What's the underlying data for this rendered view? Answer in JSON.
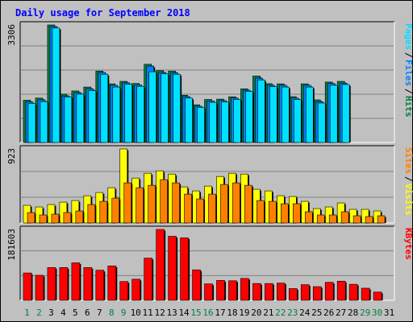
{
  "title": "Daily usage for September 2018",
  "chart_data": [
    {
      "type": "bar",
      "panel": "hits-files-pages",
      "categories": [
        "1",
        "2",
        "3",
        "4",
        "5",
        "6",
        "7",
        "8",
        "9",
        "10",
        "11",
        "12",
        "13",
        "14",
        "15",
        "16",
        "17",
        "18",
        "19",
        "20",
        "21",
        "22",
        "23",
        "24",
        "25",
        "26",
        "27",
        "28",
        "29",
        "30",
        "31"
      ],
      "series": [
        {
          "name": "Hits",
          "color": "#008040",
          "values": [
            1190,
            1250,
            3306,
            1360,
            1450,
            1560,
            2010,
            1650,
            1720,
            1660,
            2200,
            2020,
            2010,
            1330,
            1060,
            1210,
            1220,
            1285,
            1510,
            1870,
            1655,
            1650,
            1290,
            1650,
            1200,
            1700,
            1720,
            null,
            null,
            null,
            null
          ]
        },
        {
          "name": "Files",
          "color": "#0080ff",
          "values": [
            1140,
            1200,
            3260,
            1310,
            1400,
            1510,
            1970,
            1610,
            1680,
            1620,
            2150,
            1970,
            1960,
            1290,
            1020,
            1170,
            1180,
            1250,
            1470,
            1810,
            1610,
            1610,
            1250,
            1610,
            1150,
            1660,
            1670,
            null,
            null,
            null,
            null
          ]
        },
        {
          "name": "Pages",
          "color": "#00e0ff",
          "values": [
            1100,
            1150,
            3220,
            1280,
            1360,
            1460,
            1920,
            1560,
            1640,
            1580,
            1990,
            1930,
            1920,
            1250,
            990,
            1130,
            1140,
            1210,
            1440,
            1760,
            1570,
            1560,
            1210,
            1560,
            1110,
            1610,
            1630,
            null,
            null,
            null,
            null
          ]
        }
      ],
      "y_max_label": "3306",
      "grid": true
    },
    {
      "type": "bar",
      "panel": "visits-sites",
      "categories": [
        "1",
        "2",
        "3",
        "4",
        "5",
        "6",
        "7",
        "8",
        "9",
        "10",
        "11",
        "12",
        "13",
        "14",
        "15",
        "16",
        "17",
        "18",
        "19",
        "20",
        "21",
        "22",
        "23",
        "24",
        "25",
        "26",
        "27",
        "28",
        "29",
        "30",
        "31"
      ],
      "series": [
        {
          "name": "Visits",
          "color": "#ffff00",
          "values": [
            220,
            200,
            230,
            260,
            280,
            340,
            380,
            440,
            923,
            560,
            620,
            650,
            610,
            450,
            400,
            460,
            580,
            620,
            610,
            420,
            400,
            340,
            330,
            270,
            180,
            200,
            250,
            170,
            170,
            150,
            null
          ]
        },
        {
          "name": "Sites",
          "color": "#ff8000",
          "values": [
            130,
            100,
            110,
            130,
            150,
            230,
            270,
            310,
            500,
            440,
            470,
            540,
            500,
            360,
            300,
            360,
            480,
            500,
            470,
            280,
            270,
            240,
            240,
            140,
            100,
            100,
            140,
            90,
            80,
            90,
            null
          ]
        }
      ],
      "y_max_label": "923",
      "grid": true
    },
    {
      "type": "bar",
      "panel": "kbytes",
      "categories": [
        "1",
        "2",
        "3",
        "4",
        "5",
        "6",
        "7",
        "8",
        "9",
        "10",
        "11",
        "12",
        "13",
        "14",
        "15",
        "16",
        "17",
        "18",
        "19",
        "20",
        "21",
        "22",
        "23",
        "24",
        "25",
        "26",
        "27",
        "28",
        "29",
        "30",
        "31"
      ],
      "series": [
        {
          "name": "KBytes",
          "color": "#ff0000",
          "values": [
            70000,
            64000,
            84000,
            84000,
            96000,
            84000,
            77000,
            88000,
            48000,
            54000,
            108000,
            181603,
            164000,
            160000,
            78000,
            42000,
            51000,
            50000,
            56000,
            43000,
            43000,
            44000,
            30000,
            40000,
            35000,
            46000,
            49000,
            41000,
            31000,
            21000,
            null
          ]
        }
      ],
      "y_max_label": "181603",
      "grid": true
    }
  ],
  "x_label_colors": {
    "weekday": "#000000",
    "weekend": "#008040"
  },
  "weekend_days": [
    "1",
    "2",
    "8",
    "9",
    "15",
    "16",
    "22",
    "23",
    "29",
    "30"
  ]
}
